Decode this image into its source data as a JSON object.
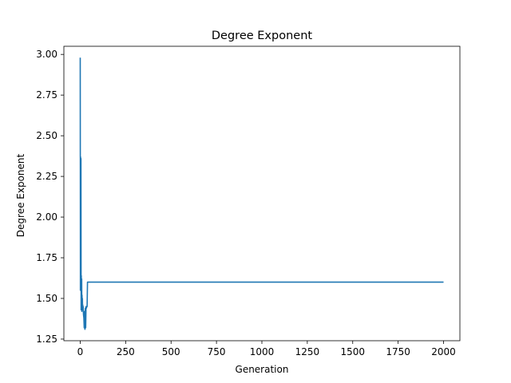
{
  "chart_data": {
    "type": "line",
    "title": "Degree Exponent",
    "xlabel": "Generation",
    "ylabel": "Degree Exponent",
    "xlim": [
      -90,
      2090
    ],
    "ylim": [
      1.24,
      3.05
    ],
    "xticks": [
      0,
      250,
      500,
      750,
      1000,
      1250,
      1500,
      1750,
      2000
    ],
    "yticks": [
      1.25,
      1.5,
      1.75,
      2.0,
      2.25,
      2.5,
      2.75,
      3.0
    ],
    "ytick_labels": [
      "1.25",
      "1.50",
      "1.75",
      "2.00",
      "2.25",
      "2.50",
      "2.75",
      "3.00"
    ],
    "grid": false,
    "legend": "none",
    "series": [
      {
        "color": "#1f77b4",
        "x": [
          0,
          1,
          2,
          3,
          4,
          5,
          6,
          7,
          8,
          9,
          10,
          11,
          12,
          13,
          14,
          15,
          16,
          18,
          20,
          22,
          24,
          26,
          28,
          30,
          32,
          34,
          36,
          38,
          40,
          45,
          50,
          60,
          70,
          80,
          90,
          100,
          150,
          200,
          300,
          500,
          750,
          1000,
          1250,
          1500,
          1750,
          2000
        ],
        "y": [
          2.98,
          1.55,
          2.37,
          1.58,
          2.36,
          1.43,
          1.64,
          1.44,
          1.62,
          1.42,
          1.52,
          1.44,
          1.5,
          1.43,
          1.46,
          1.43,
          1.45,
          1.4,
          1.38,
          1.32,
          1.42,
          1.31,
          1.44,
          1.32,
          1.45,
          1.44,
          1.45,
          1.45,
          1.6,
          1.6,
          1.6,
          1.6,
          1.6,
          1.6,
          1.6,
          1.6,
          1.6,
          1.6,
          1.6,
          1.6,
          1.6,
          1.6,
          1.6,
          1.6,
          1.6,
          1.6
        ]
      }
    ]
  }
}
